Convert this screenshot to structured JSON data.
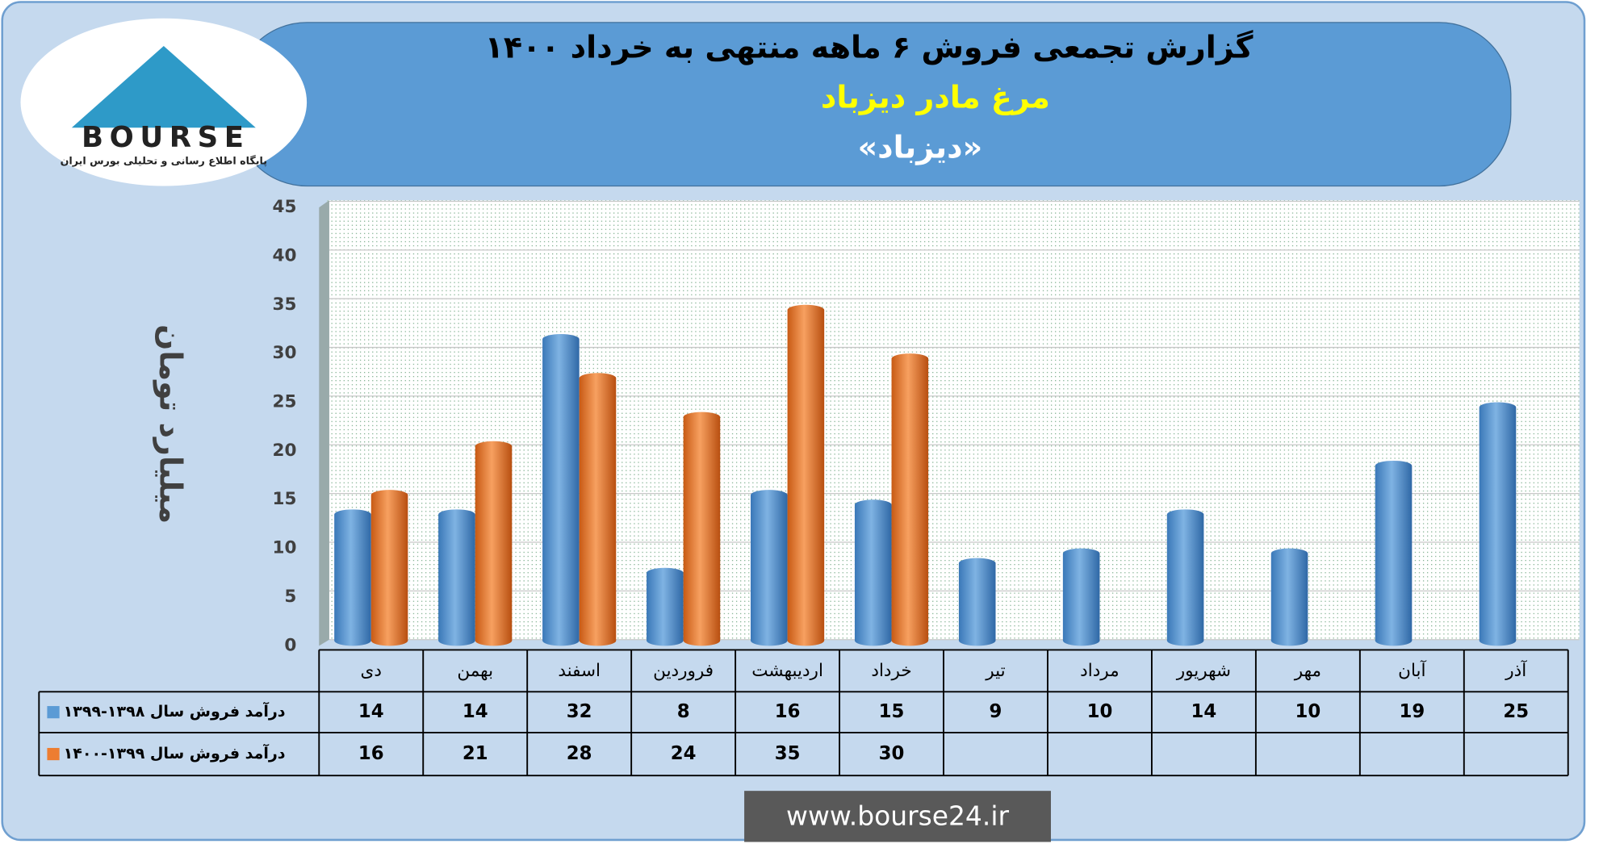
{
  "logo": {
    "brand": "BOURSE",
    "tagline": "پایگاه اطلاع رسانی و تحلیلی بورس ایران"
  },
  "footer": {
    "url": "www.bourse24.ir"
  },
  "chart_data": {
    "type": "bar",
    "title": "گزارش تجمعی فروش ۶ ماهه منتهی به خرداد ۱۴۰۰",
    "subtitle": "مرغ مادر دیزباد",
    "symbol": "«دیزباد»",
    "y_label": "میلیارد تومان",
    "categories": [
      "دی",
      "بهمن",
      "اسفند",
      "فروردین",
      "اردیبهشت",
      "خرداد",
      "تیر",
      "مرداد",
      "شهریور",
      "مهر",
      "آبان",
      "آذر"
    ],
    "series": [
      {
        "name": "درآمد فروش سال ۱۳۹۸-۱۳۹۹",
        "color": "#5b9bd5",
        "values": [
          14,
          14,
          32,
          8,
          16,
          15,
          9,
          10,
          14,
          10,
          19,
          25
        ]
      },
      {
        "name": "درآمد فروش سال ۱۳۹۹-۱۴۰۰",
        "color": "#ed7d31",
        "values": [
          16,
          21,
          28,
          24,
          35,
          30,
          null,
          null,
          null,
          null,
          null,
          null
        ]
      }
    ],
    "ylim": [
      0,
      45
    ],
    "yticks": [
      0,
      5,
      10,
      15,
      20,
      25,
      30,
      35,
      40,
      45
    ],
    "grid": true
  }
}
